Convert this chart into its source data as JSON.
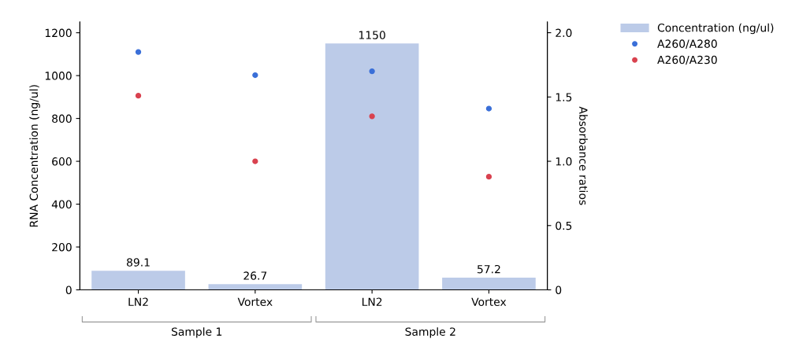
{
  "chart_data": {
    "type": "bar",
    "categories": [
      "LN2",
      "Vortex",
      "LN2",
      "Vortex"
    ],
    "ylabel": "RNA Concentration (ng/ul)",
    "y2label": "Absorbance ratios",
    "ylim": [
      0,
      1250
    ],
    "yticks": [
      0,
      200,
      400,
      600,
      800,
      1000,
      1200
    ],
    "y2lim": [
      0,
      2.083
    ],
    "y2ticks": [
      0,
      0.5,
      {
        "value": 1,
        "label": "1.0"
      },
      1.5,
      {
        "value": 2,
        "label": "2.0"
      }
    ],
    "annotations": [
      "Sample 1",
      "Sample 2"
    ],
    "legend": "top right",
    "marker": "circle",
    "series": [
      {
        "name": "Concentration (ng/ul)",
        "color": "#bccbe8",
        "values": [
          89.1,
          26.7,
          1150,
          57.2
        ],
        "value_labels": [
          "89.1",
          "26.7",
          "1150",
          "57.2"
        ]
      },
      {
        "name": "A260/A280",
        "type": "scatter",
        "axis": "y2",
        "color": "#3a6fd8",
        "values": [
          1.85,
          1.67,
          1.7,
          1.41
        ]
      },
      {
        "name": "A260/A230",
        "type": "scatter",
        "axis": "y2",
        "color": "#d9424f",
        "values": [
          1.51,
          1.0,
          1.35,
          0.88
        ]
      }
    ]
  }
}
